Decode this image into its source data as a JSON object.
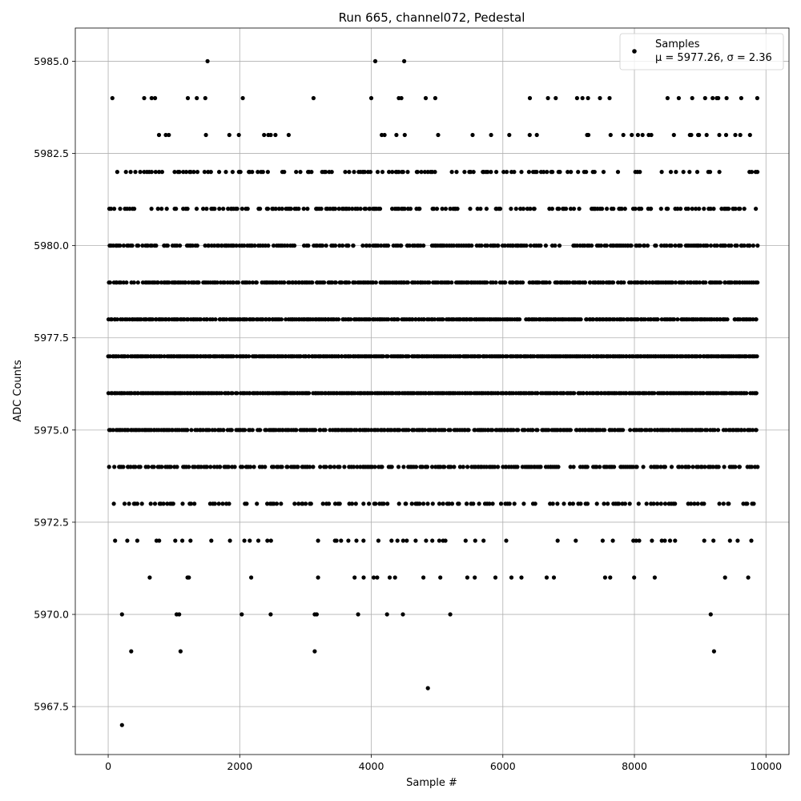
{
  "chart_data": {
    "type": "scatter",
    "title": "Run 665, channel072, Pedestal",
    "xlabel": "Sample #",
    "ylabel": "ADC Counts",
    "xlim": [
      -500,
      10350
    ],
    "ylim": [
      5966.2,
      5985.9
    ],
    "x_ticks": [
      0,
      2000,
      4000,
      6000,
      8000,
      10000
    ],
    "x_tick_labels": [
      "0",
      "2000",
      "4000",
      "6000",
      "8000",
      "10000"
    ],
    "y_ticks": [
      5967.5,
      5970.0,
      5972.5,
      5975.0,
      5977.5,
      5980.0,
      5982.5,
      5985.0
    ],
    "y_tick_labels": [
      "5967.5",
      "5970.0",
      "5972.5",
      "5975.0",
      "5977.5",
      "5980.0",
      "5982.5",
      "5985.0"
    ],
    "grid": true,
    "legend": {
      "placement": "top-right",
      "entries": [
        {
          "label": "Samples",
          "stats": "μ = 5977.26, σ = 2.36"
        }
      ]
    },
    "series": [
      {
        "name": "Samples",
        "color": "#000000",
        "marker": "circle",
        "n_points": 9850,
        "mean": 5977.26,
        "std": 2.36,
        "levels": [
          5971,
          5972,
          5973,
          5974,
          5975,
          5976,
          5977,
          5978,
          5979,
          5980,
          5981,
          5982,
          5983,
          5984
        ],
        "level_density": [
          0.07,
          0.12,
          0.35,
          0.6,
          0.82,
          0.96,
          0.98,
          0.92,
          0.82,
          0.62,
          0.4,
          0.35,
          0.1,
          0.07
        ],
        "outliers": [
          {
            "x": 210,
            "y": 5967
          },
          {
            "x": 350,
            "y": 5969
          },
          {
            "x": 1100,
            "y": 5969
          },
          {
            "x": 3140,
            "y": 5969
          },
          {
            "x": 9210,
            "y": 5969
          },
          {
            "x": 4860,
            "y": 5968
          },
          {
            "x": 210,
            "y": 5970
          },
          {
            "x": 1040,
            "y": 5970
          },
          {
            "x": 1080,
            "y": 5970
          },
          {
            "x": 2030,
            "y": 5970
          },
          {
            "x": 2470,
            "y": 5970
          },
          {
            "x": 3140,
            "y": 5970
          },
          {
            "x": 3170,
            "y": 5970
          },
          {
            "x": 3800,
            "y": 5970
          },
          {
            "x": 4240,
            "y": 5970
          },
          {
            "x": 4480,
            "y": 5970
          },
          {
            "x": 5200,
            "y": 5970
          },
          {
            "x": 9160,
            "y": 5970
          },
          {
            "x": 1510,
            "y": 5985
          },
          {
            "x": 4060,
            "y": 5985
          },
          {
            "x": 4500,
            "y": 5985
          }
        ]
      }
    ]
  }
}
